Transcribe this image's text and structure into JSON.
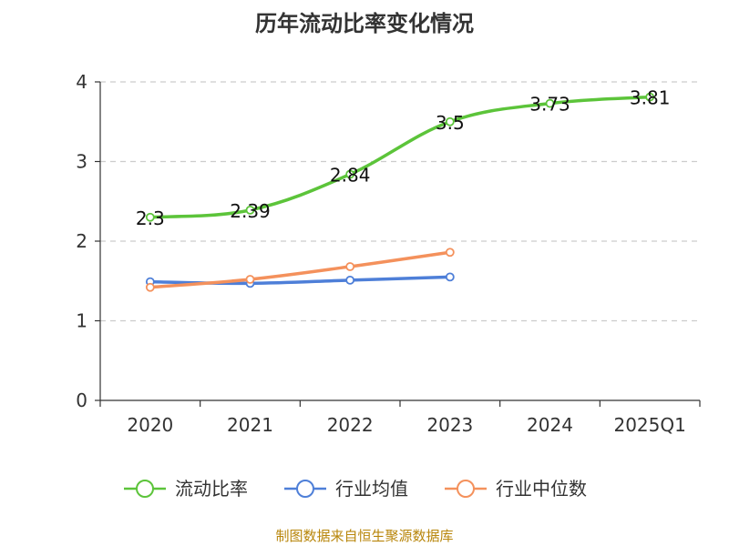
{
  "chart_data": {
    "type": "line",
    "title": "历年流动比率变化情况",
    "categories": [
      "2020",
      "2021",
      "2022",
      "2023",
      "2024",
      "2025Q1"
    ],
    "ylim": [
      0,
      4
    ],
    "yticks": [
      0,
      1,
      2,
      3,
      4
    ],
    "grid": true,
    "legend_position": "bottom",
    "series": [
      {
        "name": "流动比率",
        "color": "#5cc43a",
        "values": [
          2.3,
          2.39,
          2.84,
          3.5,
          3.73,
          3.81
        ],
        "labels": [
          "2.3",
          "2.39",
          "2.84",
          "3.5",
          "3.73",
          "3.81"
        ]
      },
      {
        "name": "行业均值",
        "color": "#4e7fd8",
        "values": [
          1.49,
          1.47,
          1.51,
          1.55,
          null,
          null
        ]
      },
      {
        "name": "行业中位数",
        "color": "#f4915c",
        "values": [
          1.42,
          1.52,
          1.68,
          1.86,
          null,
          null
        ]
      }
    ]
  },
  "source_note": "制图数据来自恒生聚源数据库"
}
